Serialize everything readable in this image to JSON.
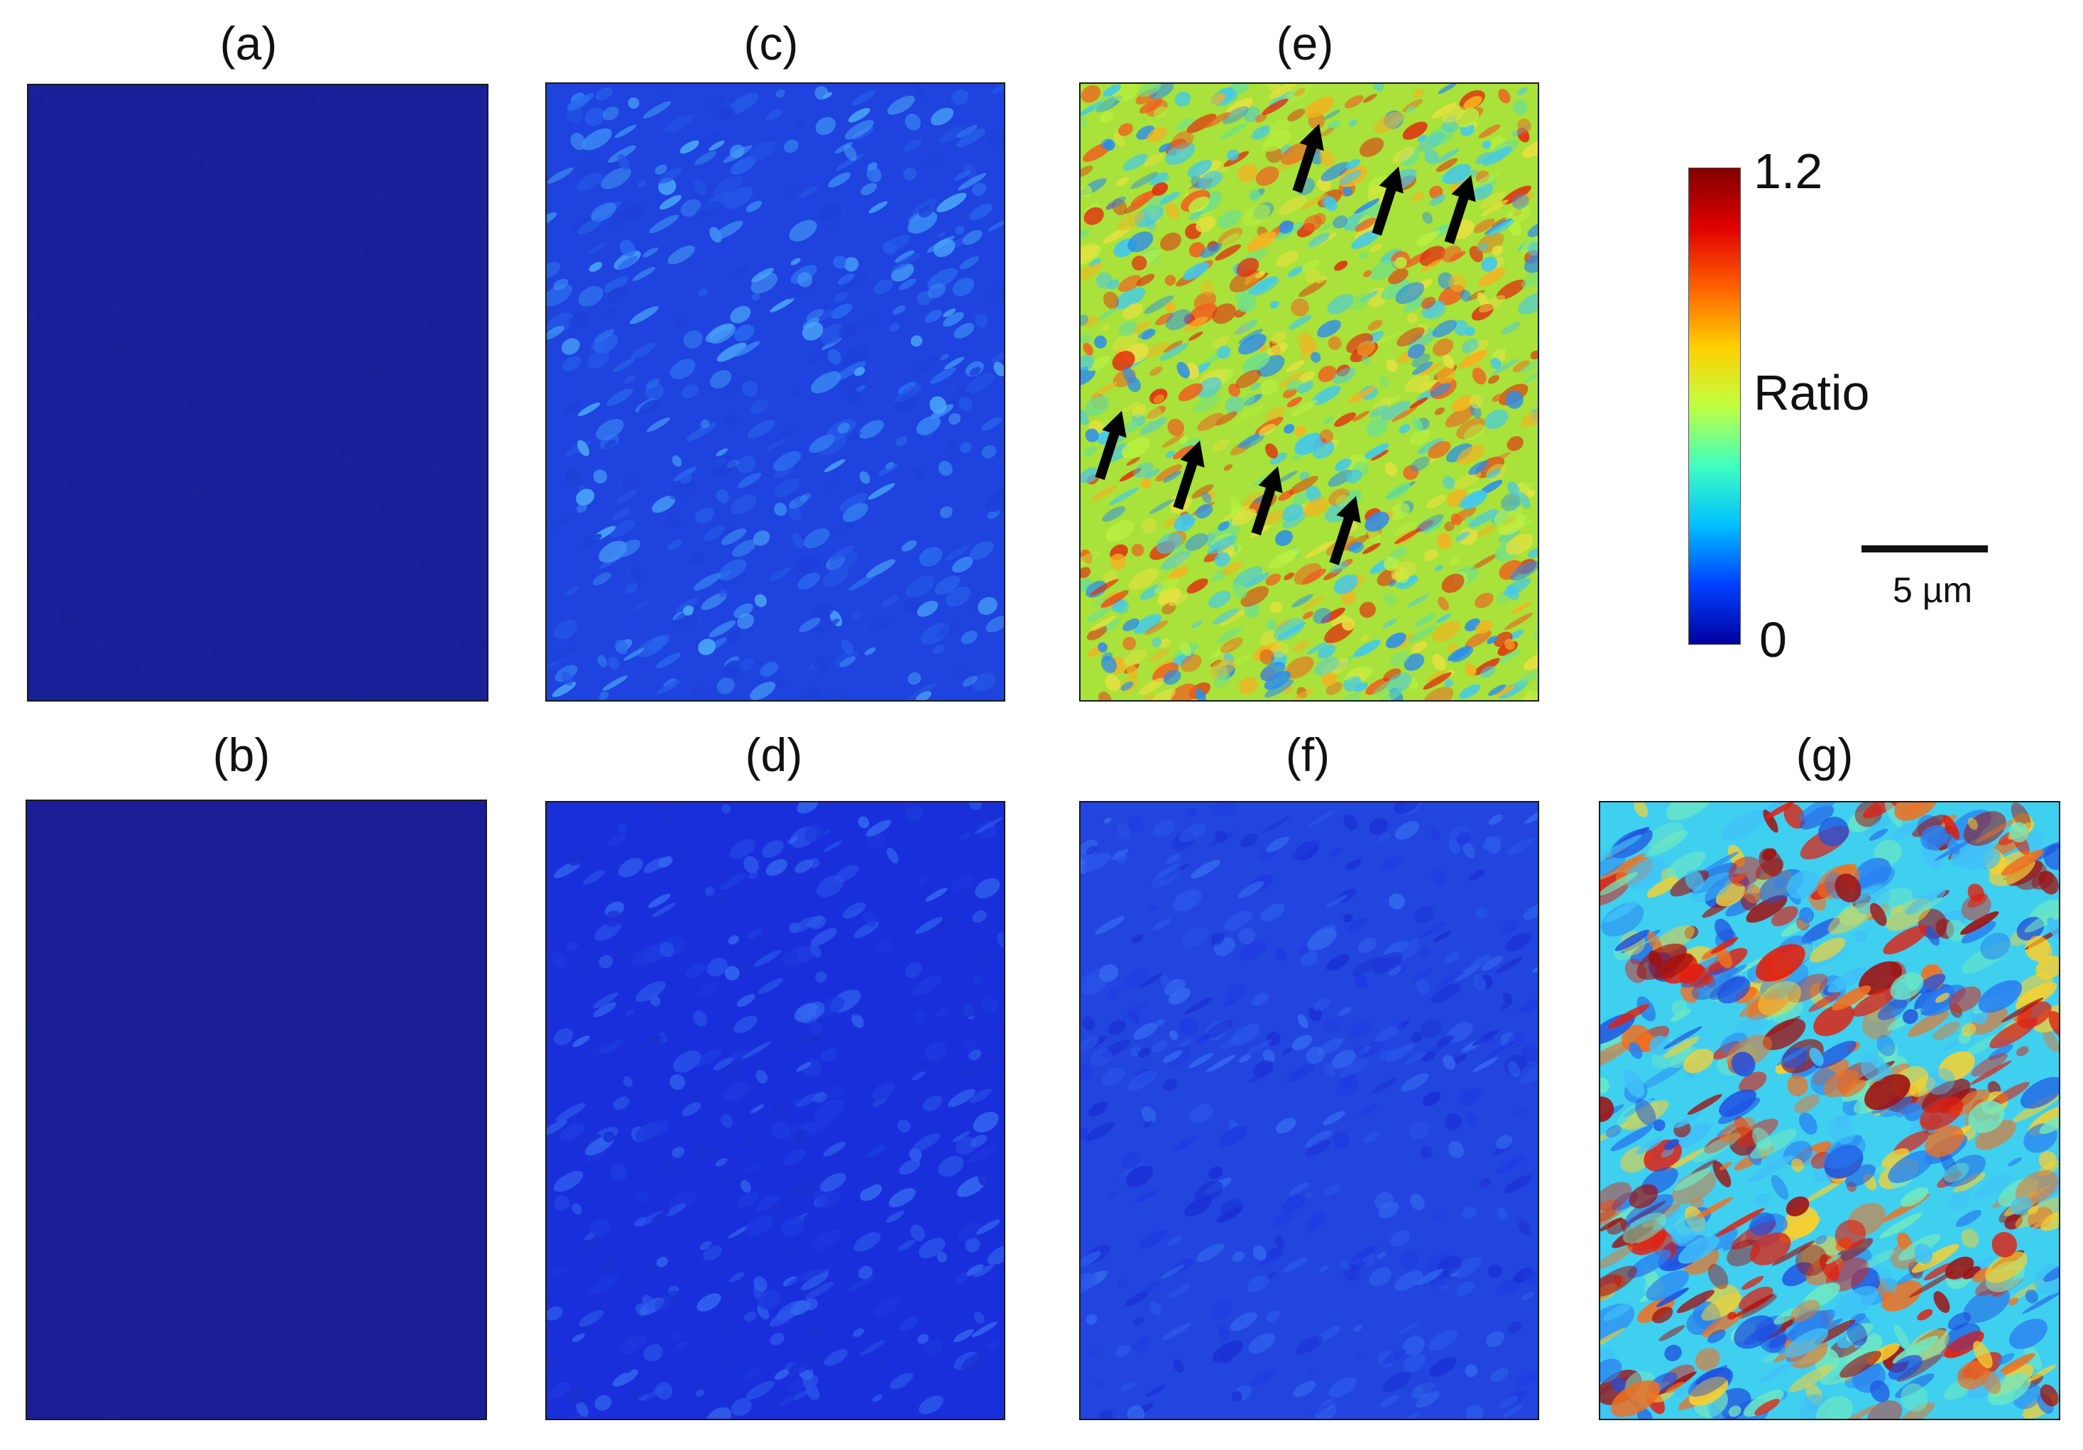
{
  "panels": [
    {
      "id": "a",
      "label": "(a)",
      "base": "#1a1f9a",
      "pattern": "flat"
    },
    {
      "id": "b",
      "label": "(b)",
      "base": "#1b1e95",
      "pattern": "flat"
    },
    {
      "id": "c",
      "label": "(c)",
      "base": "#1f43de",
      "pattern": "light-blue"
    },
    {
      "id": "d",
      "label": "(d)",
      "base": "#1a2fdc",
      "pattern": "blue"
    },
    {
      "id": "e",
      "label": "(e)",
      "base": "#a8e23a",
      "pattern": "jet-mixed"
    },
    {
      "id": "f",
      "label": "(f)",
      "base": "#2245e0",
      "pattern": "blue"
    },
    {
      "id": "g",
      "label": "(g)",
      "base": "#3fd0f0",
      "pattern": "jet-strong"
    }
  ],
  "colorbar": {
    "max_label": "1.2",
    "min_label": "0",
    "title": "Ratio",
    "colors": [
      "#0000a0",
      "#0040ff",
      "#00c0ff",
      "#40ffc0",
      "#c0ff40",
      "#ffd000",
      "#ff6000",
      "#e00000",
      "#800000"
    ]
  },
  "scale_bar": {
    "label": "5 µm"
  },
  "arrows": {
    "color": "#000000",
    "count": 7,
    "icon": "arrow-up-icon"
  }
}
